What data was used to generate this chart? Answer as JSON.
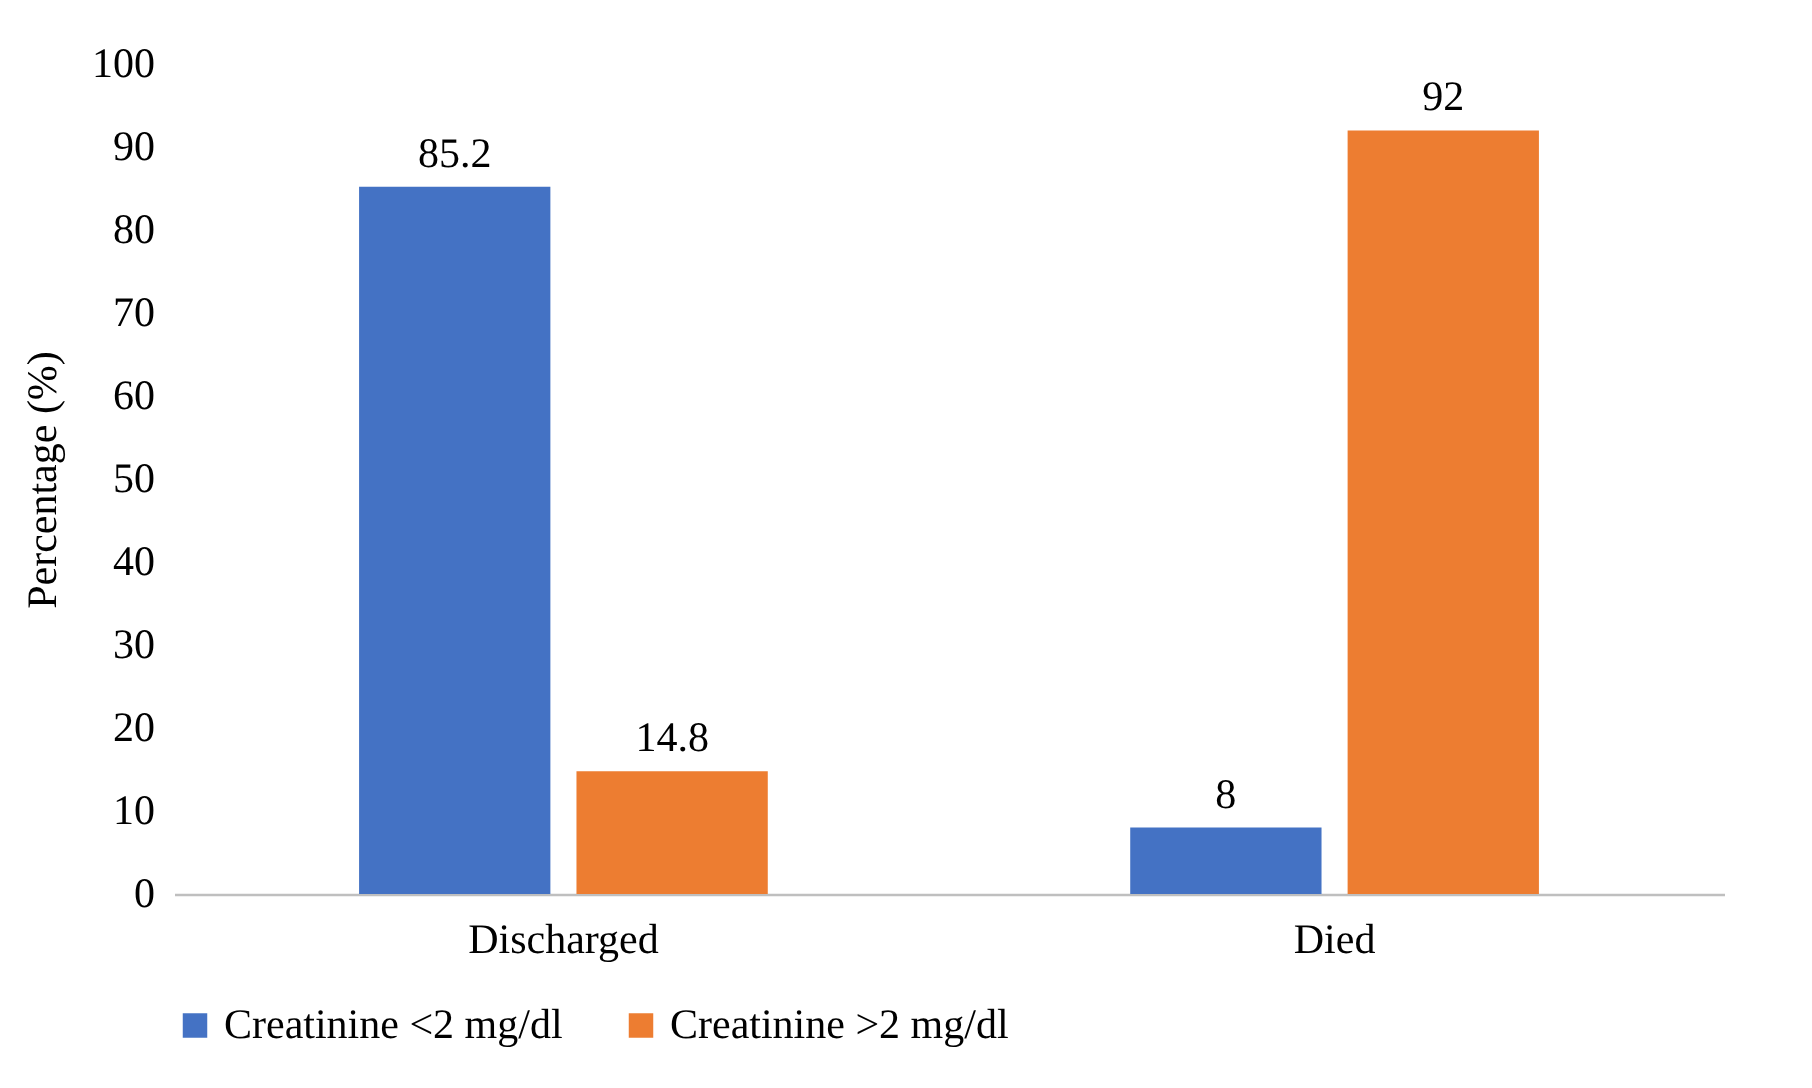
{
  "chart_data": {
    "type": "bar",
    "ylabel": "Percentage (%)",
    "categories": [
      "Discharged",
      "Died"
    ],
    "series": [
      {
        "name": "Creatinine <2 mg/dl",
        "color": "#4472c4",
        "values": [
          85.2,
          8
        ]
      },
      {
        "name": "Creatinine >2 mg/dl",
        "color": "#ed7d31",
        "values": [
          14.8,
          92
        ]
      }
    ],
    "ylim": [
      0,
      100
    ],
    "yticks": [
      0,
      10,
      20,
      30,
      40,
      50,
      60,
      70,
      80,
      90,
      100
    ],
    "data_labels": true,
    "legend": "bottom"
  }
}
